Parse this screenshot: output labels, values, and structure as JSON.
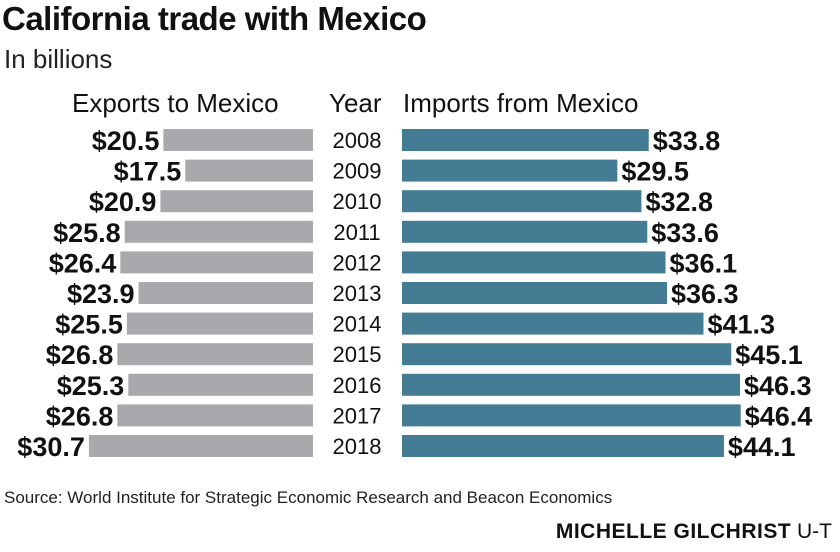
{
  "title": "California trade with Mexico",
  "subtitle": "In billions",
  "headers": {
    "exports": "Exports to Mexico",
    "year": "Year",
    "imports": "Imports from Mexico"
  },
  "chart_data": {
    "type": "bar",
    "categories": [
      "2008",
      "2009",
      "2010",
      "2011",
      "2012",
      "2013",
      "2014",
      "2015",
      "2016",
      "2017",
      "2018"
    ],
    "series": [
      {
        "name": "Exports to Mexico",
        "color": "#a7a9ac",
        "values": [
          20.5,
          17.5,
          20.9,
          25.8,
          26.4,
          23.9,
          25.5,
          26.8,
          25.3,
          26.8,
          30.7
        ],
        "labels": [
          "$20.5",
          "$17.5",
          "$20.9",
          "$25.8",
          "$26.4",
          "$23.9",
          "$25.5",
          "$26.8",
          "$25.3",
          "$26.8",
          "$30.7"
        ]
      },
      {
        "name": "Imports from Mexico",
        "color": "#447c93",
        "values": [
          33.8,
          29.5,
          32.8,
          33.6,
          36.1,
          36.3,
          41.3,
          45.1,
          46.3,
          46.4,
          44.1
        ],
        "labels": [
          "$33.8",
          "$29.5",
          "$32.8",
          "$33.6",
          "$36.1",
          "$36.3",
          "$41.3",
          "$45.1",
          "$46.3",
          "$46.4",
          "$44.1"
        ]
      }
    ]
  },
  "source": "Source: World Institute for Strategic Economic Research and Beacon Economics",
  "credit": {
    "name": "MICHELLE GILCHRIST",
    "org": "U-T"
  }
}
